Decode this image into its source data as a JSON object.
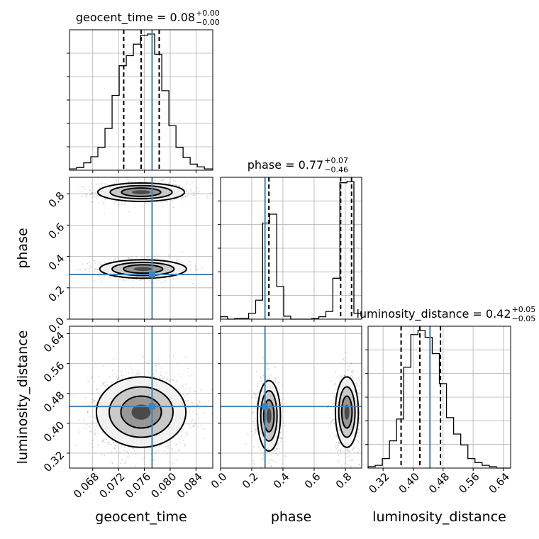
{
  "colors": {
    "truth": "#4682b4",
    "grid": "#b0b0b0"
  },
  "chart_data": {
    "type": "corner",
    "grid": true,
    "parameters": [
      {
        "key": "geocent_time",
        "label": "geocent_time",
        "title": {
          "text": "geocent_time = 0.08",
          "sup": "+0.00",
          "sub": "−0.00"
        },
        "range": [
          0.0644,
          0.0866
        ],
        "ticks": [
          0.068,
          0.072,
          0.076,
          0.08,
          0.084
        ],
        "tick_labels": [
          "0.068",
          "0.072",
          "0.076",
          "0.080",
          "0.084"
        ],
        "truth": 0.0772,
        "quantiles": [
          0.0728,
          0.0755,
          0.0783
        ],
        "hist_edges": [
          0.0644,
          0.0655,
          0.0666,
          0.0677,
          0.0688,
          0.0699,
          0.071,
          0.0721,
          0.0732,
          0.0743,
          0.0754,
          0.0765,
          0.0776,
          0.0787,
          0.0798,
          0.0809,
          0.082,
          0.0831,
          0.0842,
          0.0853,
          0.0866
        ],
        "hist_counts": [
          2,
          4,
          11,
          20,
          34,
          62,
          111,
          155,
          170,
          187,
          200,
          202,
          172,
          118,
          66,
          34,
          19,
          9,
          5,
          2
        ]
      },
      {
        "key": "phase",
        "label": "phase",
        "title": {
          "text": "phase = 0.77",
          "sup": "+0.07",
          "sub": "−0.46"
        },
        "range": [
          0.0,
          0.905
        ],
        "ticks": [
          0.0,
          0.2,
          0.4,
          0.6,
          0.8
        ],
        "tick_labels": [
          "0.0",
          "0.2",
          "0.4",
          "0.6",
          "0.8"
        ],
        "truth": 0.285,
        "quantiles": [
          0.31,
          0.77,
          0.84
        ],
        "hist_edges": [
          0.0,
          0.045,
          0.09,
          0.135,
          0.18,
          0.225,
          0.27,
          0.315,
          0.36,
          0.405,
          0.45,
          0.495,
          0.54,
          0.585,
          0.63,
          0.675,
          0.72,
          0.765,
          0.81,
          0.855,
          0.905
        ],
        "hist_counts": [
          4,
          0,
          1,
          1,
          10,
          32,
          162,
          177,
          55,
          5,
          0,
          0,
          0,
          1,
          4,
          13,
          69,
          230,
          232,
          10
        ]
      },
      {
        "key": "luminosity_distance",
        "label": "luminosity_distance",
        "title": {
          "text": "luminosity_distance = 0.42",
          "sup": "+0.05",
          "sub": "−0.05"
        },
        "range": [
          0.28,
          0.66
        ],
        "ticks": [
          0.32,
          0.4,
          0.48,
          0.56,
          0.64
        ],
        "tick_labels": [
          "0.32",
          "0.40",
          "0.48",
          "0.56",
          "0.64"
        ],
        "truth": 0.445,
        "quantiles": [
          0.368,
          0.418,
          0.473
        ],
        "hist_edges": [
          0.28,
          0.299,
          0.318,
          0.337,
          0.356,
          0.375,
          0.394,
          0.413,
          0.432,
          0.451,
          0.47,
          0.489,
          0.508,
          0.527,
          0.546,
          0.565,
          0.584,
          0.603,
          0.622,
          0.641,
          0.66
        ],
        "hist_counts": [
          1,
          2,
          7,
          20,
          36,
          74,
          98,
          101,
          96,
          84,
          62,
          37,
          25,
          17,
          7,
          4,
          2,
          1,
          0,
          0
        ]
      }
    ],
    "pairs": [
      {
        "x": "geocent_time",
        "y": "phase",
        "modes": [
          {
            "cx": 0.0755,
            "cy": 0.81,
            "sx": 0.0032,
            "sy": 0.028,
            "weight": 0.55
          },
          {
            "cx": 0.0758,
            "cy": 0.32,
            "sx": 0.0032,
            "sy": 0.028,
            "weight": 0.45
          }
        ]
      },
      {
        "x": "geocent_time",
        "y": "luminosity_distance",
        "modes": [
          {
            "cx": 0.0755,
            "cy": 0.43,
            "sx": 0.0033,
            "sy": 0.045,
            "weight": 1.0
          }
        ]
      },
      {
        "x": "phase",
        "y": "luminosity_distance",
        "modes": [
          {
            "cx": 0.31,
            "cy": 0.42,
            "sx": 0.035,
            "sy": 0.045,
            "weight": 0.45
          },
          {
            "cx": 0.81,
            "cy": 0.43,
            "sx": 0.035,
            "sy": 0.045,
            "weight": 0.55
          }
        ]
      }
    ]
  }
}
